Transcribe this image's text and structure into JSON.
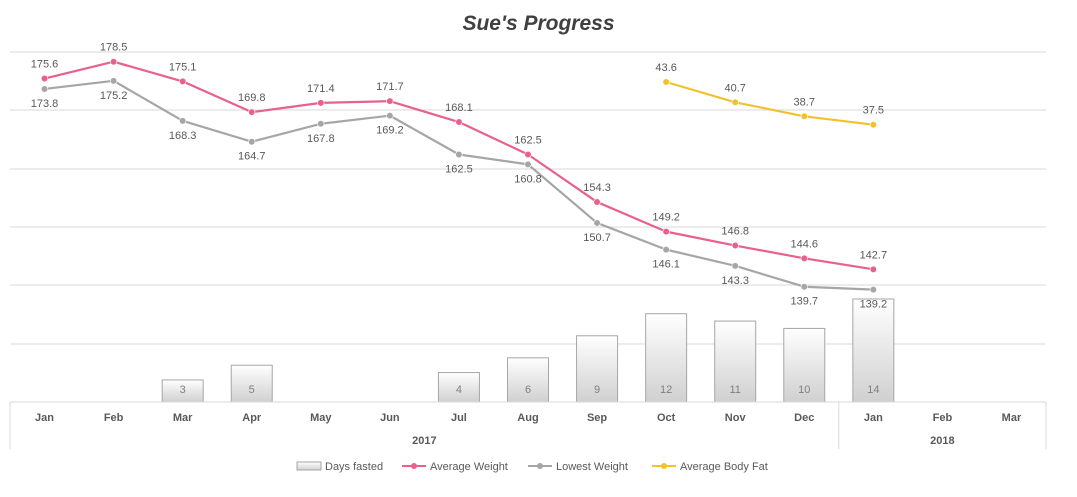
{
  "chart_data": {
    "type": "line",
    "title": "Sue's Progress",
    "categories": [
      "Jan",
      "Feb",
      "Mar",
      "Apr",
      "May",
      "Jun",
      "Jul",
      "Aug",
      "Sep",
      "Oct",
      "Nov",
      "Dec",
      "Jan",
      "Feb",
      "Mar"
    ],
    "groups": [
      {
        "label": "2017",
        "start": 0,
        "end": 11
      },
      {
        "label": "2018",
        "start": 12,
        "end": 14
      }
    ],
    "series": [
      {
        "name": "Days fasted",
        "kind": "bar",
        "color": "#d9d9d9",
        "values": [
          null,
          null,
          3,
          5,
          null,
          null,
          4,
          6,
          9,
          12,
          11,
          10,
          14,
          null,
          null
        ]
      },
      {
        "name": "Average Weight",
        "kind": "line",
        "color": "#e8618c",
        "values": [
          175.6,
          178.5,
          175.1,
          169.8,
          171.4,
          171.7,
          168.1,
          162.5,
          154.3,
          149.2,
          146.8,
          144.6,
          142.7,
          null,
          null
        ]
      },
      {
        "name": "Lowest Weight",
        "kind": "line",
        "color": "#a6a6a6",
        "values": [
          173.8,
          175.2,
          168.3,
          164.7,
          167.8,
          169.2,
          162.5,
          160.8,
          150.7,
          146.1,
          143.3,
          139.7,
          139.2,
          null,
          null
        ]
      },
      {
        "name": "Average Body Fat",
        "kind": "line",
        "color": "#f2c12e",
        "values": [
          null,
          null,
          null,
          null,
          null,
          null,
          null,
          null,
          null,
          43.6,
          40.7,
          38.7,
          37.5,
          null,
          null
        ]
      }
    ],
    "grid": true,
    "legend": "bottom"
  }
}
